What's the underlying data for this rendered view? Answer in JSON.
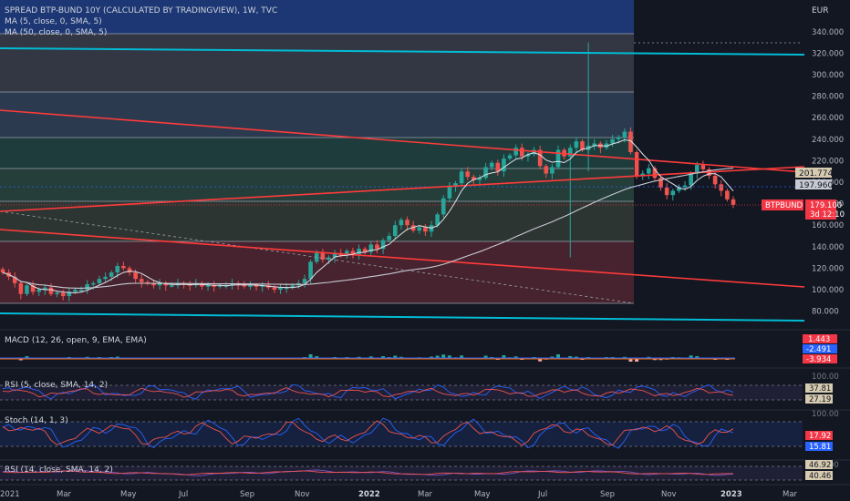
{
  "header": {
    "title": "SPREAD BTP-BUND 10Y (CALCULATED BY TRADINGVIEW), 1W, TVC",
    "ma5": "MA (5, close, 0, SMA, 5)",
    "ma50": "MA (50, close, 0, SMA, 5)"
  },
  "currency": "EUR",
  "colors": {
    "up": "#26a69a",
    "down": "#ef5350",
    "price_tag": "#f23645",
    "channel": "#00bcd4",
    "trend": "#ff3b3b",
    "ma_short": "#e0e3eb",
    "ma_long": "#d1d4dc",
    "macd": "#2962ff",
    "signal": "#ff6d00",
    "rsi": "#7e57c2"
  },
  "price_axis": {
    "ticks": [
      "340.000",
      "320.000",
      "300.000",
      "280.000",
      "260.000",
      "240.000",
      "220.000",
      "200.000",
      "180.000",
      "160.000",
      "140.000",
      "120.000",
      "100.000",
      "80.000"
    ]
  },
  "price_labels": {
    "ma5": "201.774",
    "ma50": "197.960",
    "symbol": "BTPBUND",
    "last": "179.100",
    "countdown": "3d 12:10"
  },
  "time_axis": [
    "2021",
    "Mar",
    "May",
    "Jul",
    "Sep",
    "Nov",
    "2022",
    "Mar",
    "May",
    "Jul",
    "Sep",
    "Nov",
    "2023",
    "Mar"
  ],
  "indicators": {
    "macd": {
      "title": "MACD (12, 26, open, 9, EMA, EMA)",
      "values": [
        "1.443",
        "-2.491",
        "-3.934"
      ]
    },
    "rsi1": {
      "title": "RSI (5, close, SMA, 14, 2)",
      "axis": "100.00",
      "values": [
        "37.81",
        "27.19"
      ]
    },
    "stoch": {
      "title": "Stoch (14, 1, 3)",
      "axis": "100.00",
      "values": [
        "17.92",
        "15.81"
      ]
    },
    "rsi2": {
      "title": "RSI (14, close, SMA, 14, 2)",
      "axis": "100.00",
      "values": [
        "46.92",
        "40.46"
      ]
    }
  },
  "chart_data": {
    "type": "candlestick",
    "title": "SPREAD BTP-BUND 10Y (CALCULATED BY TRADINGVIEW), 1W, TVC",
    "y_unit": "EUR",
    "ylim": [
      70,
      350
    ],
    "x_range": [
      "2021-01",
      "2023-03"
    ],
    "weekly_close": [
      116,
      112,
      106,
      96,
      104,
      98,
      100,
      102,
      96,
      97,
      94,
      98,
      100,
      100,
      105,
      106,
      110,
      112,
      116,
      122,
      120,
      116,
      110,
      107,
      106,
      104,
      106,
      104,
      104,
      106,
      105,
      104,
      106,
      103,
      104,
      103,
      104,
      104,
      106,
      105,
      103,
      104,
      103,
      104,
      102,
      100,
      102,
      102,
      104,
      106,
      110,
      126,
      134,
      128,
      130,
      134,
      132,
      136,
      133,
      138,
      135,
      142,
      138,
      146,
      150,
      160,
      165,
      160,
      155,
      158,
      154,
      160,
      170,
      185,
      196,
      199,
      210,
      205,
      202,
      204,
      214,
      218,
      210,
      222,
      225,
      232,
      224,
      226,
      230,
      215,
      208,
      214,
      230,
      224,
      232,
      238,
      230,
      234,
      236,
      232,
      236,
      240,
      242,
      247,
      228,
      206,
      208,
      213,
      204,
      195,
      188,
      192,
      195,
      197,
      208,
      216,
      212,
      206,
      198,
      192,
      184,
      179
    ],
    "ma5_last": 201.774,
    "ma50_last": 197.96,
    "last_close": 179.1,
    "grid": true
  }
}
